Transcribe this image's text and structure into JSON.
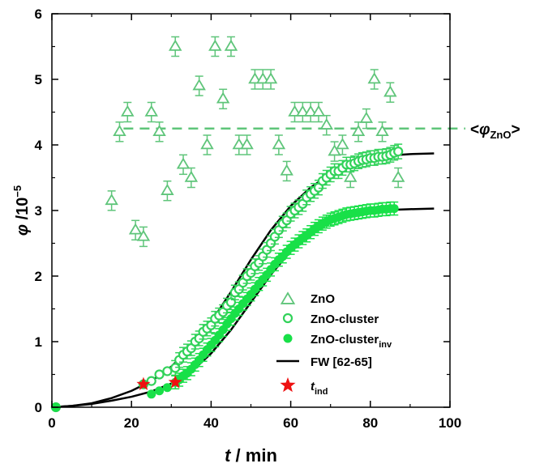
{
  "chart_data": {
    "type": "scatter",
    "xlabel": {
      "symbol": "t",
      "unit": " / min"
    },
    "ylabel": {
      "symbol": "φ",
      "unit": " /10",
      "exp": "−5"
    },
    "xlim": [
      0,
      100
    ],
    "ylim": [
      0,
      6
    ],
    "xticks": [
      "0",
      "20",
      "40",
      "60",
      "80",
      "100"
    ],
    "yticks": [
      "0",
      "1",
      "2",
      "3",
      "4",
      "5",
      "6"
    ],
    "legend_position": "bottom-right",
    "annotation": {
      "text": "<φ",
      "sub": "ZnO",
      "suffix": ">",
      "y": 4.25
    },
    "colors": {
      "green": "#5fc57a",
      "green_open": "#32d25a",
      "green_fill": "#18e048",
      "curve": "#000000",
      "star": "#ee1111"
    },
    "series": [
      {
        "name": "ZnO",
        "marker": "open-triangle",
        "x": [
          15,
          17,
          19,
          21,
          23,
          25,
          27,
          29,
          31,
          33,
          35,
          37,
          39,
          41,
          43,
          45,
          47,
          49,
          51,
          53,
          55,
          57,
          59,
          61,
          63,
          65,
          67,
          69,
          71,
          73,
          75,
          77,
          79,
          81,
          83,
          85,
          87
        ],
        "y": [
          3.15,
          4.2,
          4.5,
          2.7,
          2.6,
          4.5,
          4.2,
          3.3,
          5.5,
          3.7,
          3.5,
          4.9,
          4.0,
          5.5,
          4.7,
          5.5,
          4.0,
          4.0,
          5.0,
          5.0,
          5.0,
          4.0,
          3.6,
          4.5,
          4.5,
          4.5,
          4.5,
          4.3,
          3.9,
          4.0,
          3.5,
          4.2,
          4.4,
          5.0,
          4.2,
          4.8,
          3.5
        ]
      },
      {
        "name": "ZnO-cluster",
        "marker": "open-circle",
        "x": [
          1,
          23,
          25,
          27,
          29,
          31,
          32,
          33,
          34,
          35,
          36,
          37,
          38,
          39,
          40,
          41,
          42,
          43,
          44,
          45,
          46,
          47,
          48,
          49,
          50,
          51,
          52,
          53,
          54,
          55,
          56,
          57,
          58,
          59,
          60,
          61,
          62,
          63,
          64,
          65,
          66,
          67,
          68,
          69,
          70,
          71,
          72,
          73,
          74,
          75,
          76,
          77,
          78,
          79,
          80,
          81,
          82,
          83,
          84,
          85,
          86,
          87
        ],
        "y": [
          0.0,
          0.35,
          0.4,
          0.5,
          0.55,
          0.6,
          0.72,
          0.8,
          0.85,
          0.9,
          1.0,
          1.05,
          1.15,
          1.2,
          1.25,
          1.35,
          1.4,
          1.45,
          1.55,
          1.6,
          1.75,
          1.8,
          1.9,
          2.0,
          2.05,
          2.15,
          2.2,
          2.3,
          2.4,
          2.5,
          2.6,
          2.7,
          2.8,
          2.85,
          2.95,
          3.0,
          3.05,
          3.1,
          3.2,
          3.25,
          3.3,
          3.35,
          3.45,
          3.5,
          3.55,
          3.6,
          3.6,
          3.65,
          3.7,
          3.7,
          3.72,
          3.75,
          3.77,
          3.78,
          3.8,
          3.8,
          3.82,
          3.82,
          3.83,
          3.85,
          3.88,
          3.9
        ]
      },
      {
        "name": "ZnO-cluster",
        "name_sub": "inv",
        "marker": "filled-circle",
        "x": [
          1,
          25,
          27,
          29,
          31,
          32,
          33,
          34,
          35,
          36,
          37,
          38,
          39,
          40,
          41,
          42,
          43,
          44,
          45,
          46,
          47,
          48,
          49,
          50,
          51,
          52,
          53,
          54,
          55,
          56,
          57,
          58,
          59,
          60,
          61,
          62,
          63,
          64,
          65,
          66,
          67,
          68,
          69,
          70,
          71,
          72,
          73,
          74,
          75,
          76,
          77,
          78,
          79,
          80,
          81,
          82,
          83,
          84,
          85,
          86
        ],
        "y": [
          0.0,
          0.2,
          0.25,
          0.3,
          0.38,
          0.42,
          0.48,
          0.52,
          0.58,
          0.65,
          0.72,
          0.8,
          0.88,
          0.95,
          1.02,
          1.1,
          1.18,
          1.27,
          1.35,
          1.43,
          1.5,
          1.58,
          1.65,
          1.72,
          1.8,
          1.88,
          1.95,
          2.02,
          2.1,
          2.18,
          2.25,
          2.3,
          2.37,
          2.43,
          2.48,
          2.53,
          2.58,
          2.62,
          2.67,
          2.72,
          2.76,
          2.8,
          2.83,
          2.86,
          2.88,
          2.9,
          2.92,
          2.94,
          2.95,
          2.96,
          2.97,
          2.98,
          2.99,
          3.0,
          3.0,
          3.01,
          3.02,
          3.02,
          3.03,
          3.03
        ]
      },
      {
        "name": "FW [62-65]",
        "marker": "line",
        "curves": [
          {
            "x": [
              0,
              5,
              10,
              15,
              20,
              25,
              30,
              35,
              40,
              45,
              50,
              55,
              60,
              65,
              70,
              75,
              80,
              85,
              90,
              96
            ],
            "y": [
              0.0,
              0.02,
              0.06,
              0.14,
              0.25,
              0.4,
              0.62,
              0.92,
              1.3,
              1.76,
              2.25,
              2.7,
              3.07,
              3.35,
              3.56,
              3.7,
              3.79,
              3.84,
              3.86,
              3.87
            ]
          },
          {
            "x": [
              0,
              5,
              10,
              15,
              20,
              25,
              30,
              35,
              40,
              45,
              50,
              55,
              60,
              65,
              70,
              75,
              80,
              85,
              90,
              96
            ],
            "y": [
              0.0,
              0.02,
              0.05,
              0.1,
              0.16,
              0.24,
              0.36,
              0.54,
              0.82,
              1.18,
              1.6,
              2.02,
              2.38,
              2.65,
              2.83,
              2.93,
              2.98,
              3.01,
              3.02,
              3.03
            ]
          }
        ]
      },
      {
        "name": "t",
        "name_sub": "ind",
        "marker": "star",
        "x": [
          23,
          31
        ],
        "y": [
          0.35,
          0.38
        ]
      }
    ]
  }
}
